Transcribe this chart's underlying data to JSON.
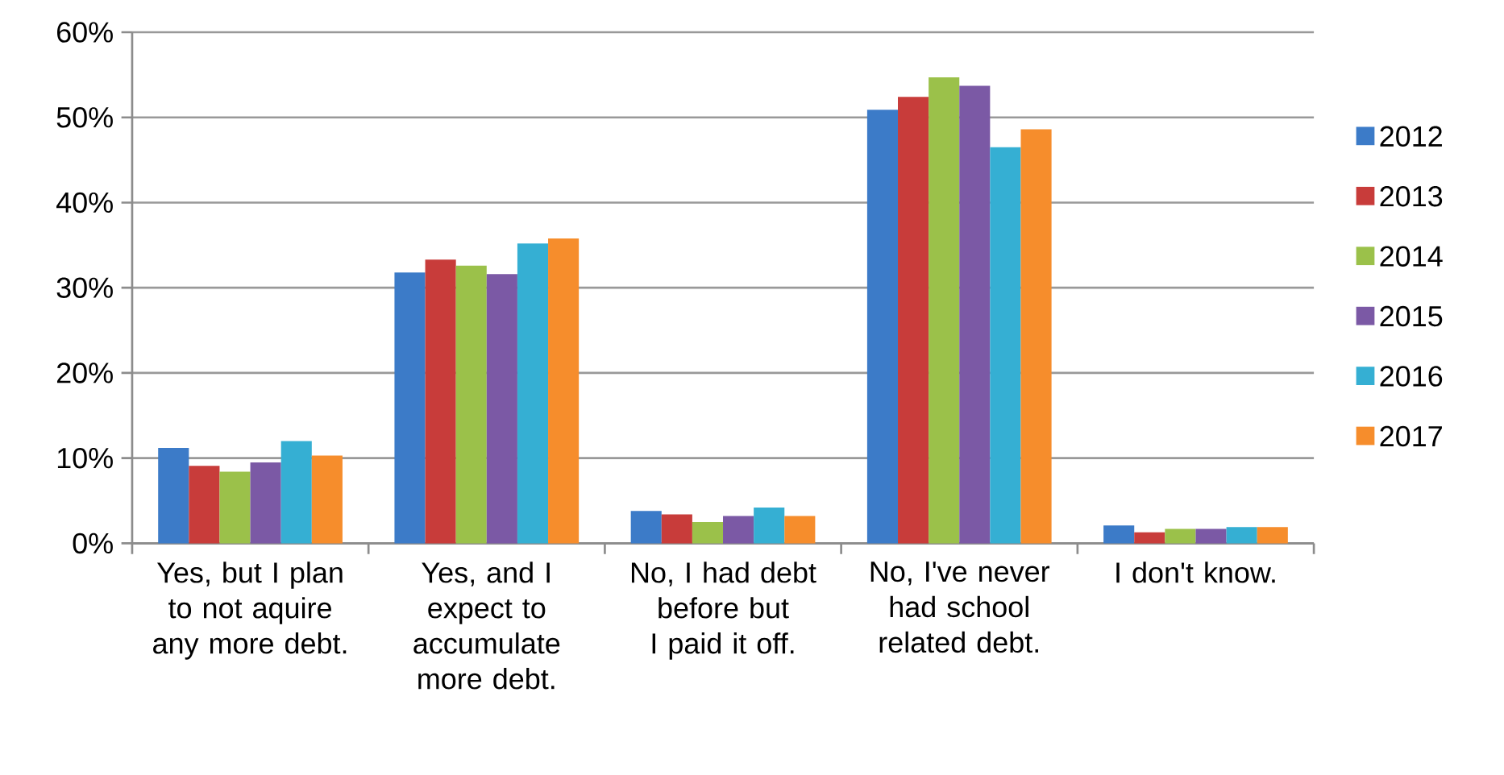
{
  "chart_data": {
    "type": "bar",
    "categories": [
      "Yes, but I plan to not aquire any more debt.",
      "Yes, and I expect to accumulate more debt.",
      "No, I had debt before but I paid it off.",
      "No, I've never had school related debt.",
      "I don't know."
    ],
    "series": [
      {
        "name": "2012",
        "color": "#3c7bc8",
        "values": [
          11.2,
          31.8,
          3.8,
          50.9,
          2.1
        ]
      },
      {
        "name": "2013",
        "color": "#c83c3a",
        "values": [
          9.1,
          33.3,
          3.4,
          52.4,
          1.3
        ]
      },
      {
        "name": "2014",
        "color": "#9bc14a",
        "values": [
          8.4,
          32.6,
          2.5,
          54.7,
          1.7
        ]
      },
      {
        "name": "2015",
        "color": "#7b59a5",
        "values": [
          9.5,
          31.6,
          3.2,
          53.7,
          1.7
        ]
      },
      {
        "name": "2016",
        "color": "#35afd3",
        "values": [
          12.0,
          35.2,
          4.2,
          46.5,
          1.9
        ]
      },
      {
        "name": "2017",
        "color": "#f68d2c",
        "values": [
          10.3,
          35.8,
          3.2,
          48.6,
          1.9
        ]
      }
    ],
    "ylim": [
      0,
      60
    ],
    "yticks": [
      {
        "value": 0,
        "label": "0%"
      },
      {
        "value": 10,
        "label": "10%"
      },
      {
        "value": 20,
        "label": "20%"
      },
      {
        "value": 30,
        "label": "30%"
      },
      {
        "value": 40,
        "label": "40%"
      },
      {
        "value": 50,
        "label": "50%"
      },
      {
        "value": 60,
        "label": "60%"
      }
    ],
    "grid": "y",
    "legend": "right"
  }
}
